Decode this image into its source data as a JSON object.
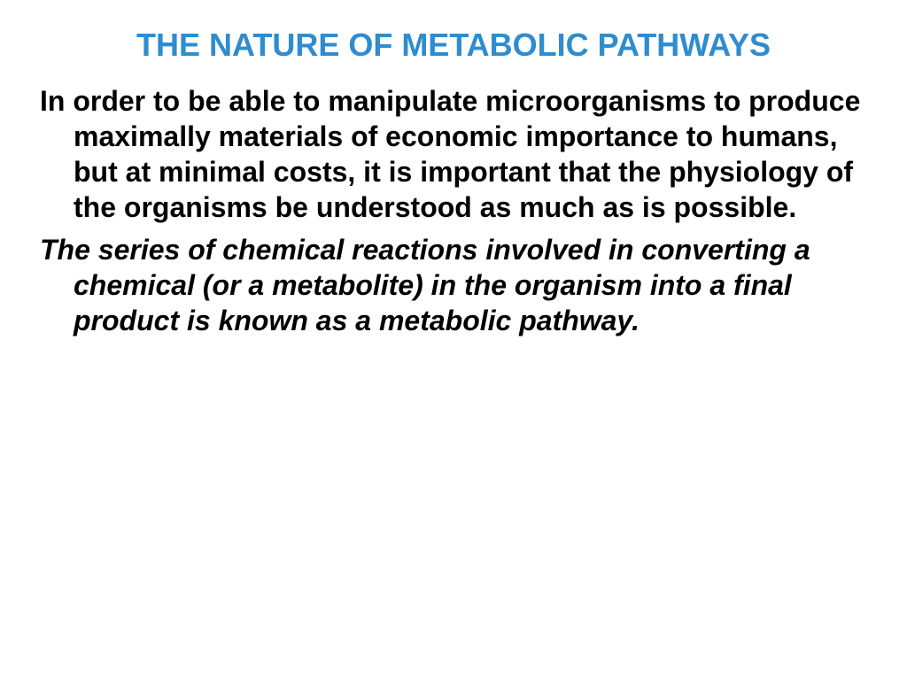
{
  "slide": {
    "title": "THE NATURE OF METABOLIC PATHWAYS",
    "title_color": "#2e8ccf",
    "title_fontsize": 36,
    "body_color": "#000000",
    "body_fontsize": 32,
    "background_color": "#ffffff",
    "paragraph1": "In order to be able to manipulate microorganisms to produce maximally materials of economic importance to humans, but at minimal costs, it is important that the physiology of the organisms be understood as much as is possible.",
    "paragraph2": "The series of chemical reactions involved in converting a chemical (or a metabolite) in the organism into a final product is known as a metabolic pathway."
  }
}
